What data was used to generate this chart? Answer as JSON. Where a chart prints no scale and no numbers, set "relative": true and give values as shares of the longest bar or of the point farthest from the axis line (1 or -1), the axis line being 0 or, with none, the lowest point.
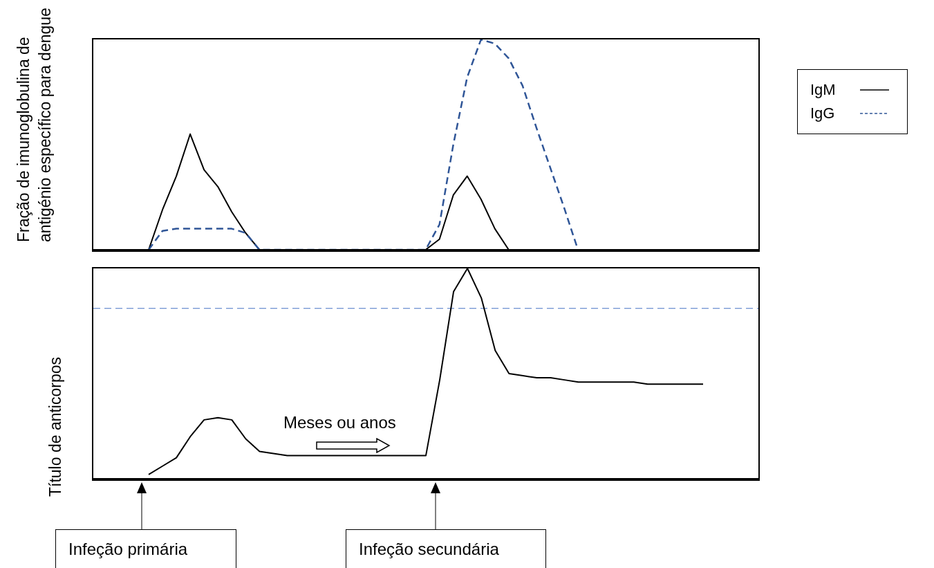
{
  "chart_data": [
    {
      "type": "line",
      "ylabel": "Fração de imunoglobulina de antigénio específico para dengue",
      "relative": true,
      "legend": "right",
      "categories": [
        null,
        null,
        null,
        null,
        null,
        null,
        null,
        null,
        null,
        null,
        null,
        null,
        null,
        null,
        null,
        null,
        null,
        null,
        null,
        null,
        null,
        null,
        null,
        null,
        null,
        null,
        null,
        null,
        null,
        null,
        null,
        null
      ],
      "series": [
        {
          "name": "IgM",
          "color": "#000000",
          "line_style": "solid",
          "values": [
            0,
            0.19,
            0.35,
            0.55,
            0.38,
            0.3,
            0.18,
            0.08,
            0,
            0,
            0,
            0,
            0,
            0,
            0,
            0,
            0,
            0,
            0,
            0,
            0,
            0.05,
            0.26,
            0.35,
            0.24,
            0.1,
            0,
            0,
            0,
            0,
            0,
            0
          ]
        },
        {
          "name": "IgG",
          "color": "#2f5597",
          "line_style": "dashed",
          "values": [
            0,
            0.09,
            0.1,
            0.1,
            0.1,
            0.1,
            0.1,
            0.08,
            0,
            0,
            0,
            0,
            0,
            0,
            0,
            0,
            0,
            0,
            0,
            0,
            0,
            0.12,
            0.5,
            0.82,
            1,
            0.98,
            0.91,
            0.78,
            0.58,
            0.39,
            0.2,
            0
          ]
        }
      ]
    },
    {
      "type": "line",
      "ylabel": "Título de anticorpos",
      "relative": true,
      "categories": [
        null,
        null,
        null,
        null,
        null,
        null,
        null,
        null,
        null,
        null,
        null,
        null,
        null,
        null,
        null,
        null,
        null,
        null,
        null,
        null,
        null,
        null,
        null,
        null,
        null,
        null,
        null,
        null,
        null,
        null,
        null,
        null,
        null,
        null,
        null,
        null,
        null,
        null,
        null,
        null,
        null
      ],
      "series": [
        {
          "color": "#000000",
          "values": [
            0.02,
            0.06,
            0.1,
            0.2,
            0.28,
            0.29,
            0.28,
            0.19,
            0.13,
            0.12,
            0.11,
            0.11,
            0.11,
            0.11,
            0.11,
            0.11,
            0.11,
            0.11,
            0.11,
            0.11,
            0.11,
            0.47,
            0.89,
            1,
            0.86,
            0.61,
            0.5,
            0.49,
            0.48,
            0.48,
            0.47,
            0.46,
            0.46,
            0.46,
            0.46,
            0.46,
            0.45,
            0.45,
            0.45,
            0.45,
            0.45
          ]
        }
      ],
      "ref_lines": [
        {
          "axis": "y",
          "value": 0.81,
          "color": "#4472c4",
          "line_style": "dashed"
        }
      ],
      "annotations": [
        "Meses ou anos",
        "Infeção primária",
        "Infeção secundária"
      ]
    }
  ]
}
